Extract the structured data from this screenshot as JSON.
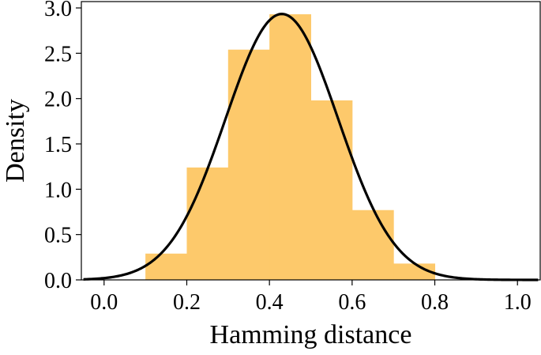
{
  "chart_data": {
    "type": "histogram",
    "xlabel": "Hamming distance",
    "ylabel": "Density",
    "xlim": [
      -0.055,
      1.055
    ],
    "ylim": [
      0.0,
      3.07
    ],
    "xticks": [
      0.0,
      0.2,
      0.4,
      0.6,
      0.8,
      1.0
    ],
    "xtick_labels": [
      "0.0",
      "0.2",
      "0.4",
      "0.6",
      "0.8",
      "1.0"
    ],
    "yticks": [
      0.0,
      0.5,
      1.0,
      1.5,
      2.0,
      2.5,
      3.0
    ],
    "ytick_labels": [
      "0.0",
      "0.5",
      "1.0",
      "1.5",
      "2.0",
      "2.5",
      "3.0"
    ],
    "bins": [
      {
        "x0": 0.1,
        "x1": 0.2,
        "density": 0.29
      },
      {
        "x0": 0.2,
        "x1": 0.3,
        "density": 1.24
      },
      {
        "x0": 0.3,
        "x1": 0.4,
        "density": 2.54
      },
      {
        "x0": 0.4,
        "x1": 0.5,
        "density": 2.93
      },
      {
        "x0": 0.5,
        "x1": 0.6,
        "density": 1.98
      },
      {
        "x0": 0.6,
        "x1": 0.7,
        "density": 0.77
      },
      {
        "x0": 0.7,
        "x1": 0.8,
        "density": 0.18
      }
    ],
    "fit_curve": {
      "type": "normal",
      "mean": 0.43,
      "std": 0.136,
      "x_range": [
        -0.05,
        1.05
      ]
    },
    "grid": false,
    "legend": "none"
  },
  "colors": {
    "bar": "#fdc96b",
    "curve": "#000000",
    "axis": "#000000"
  }
}
